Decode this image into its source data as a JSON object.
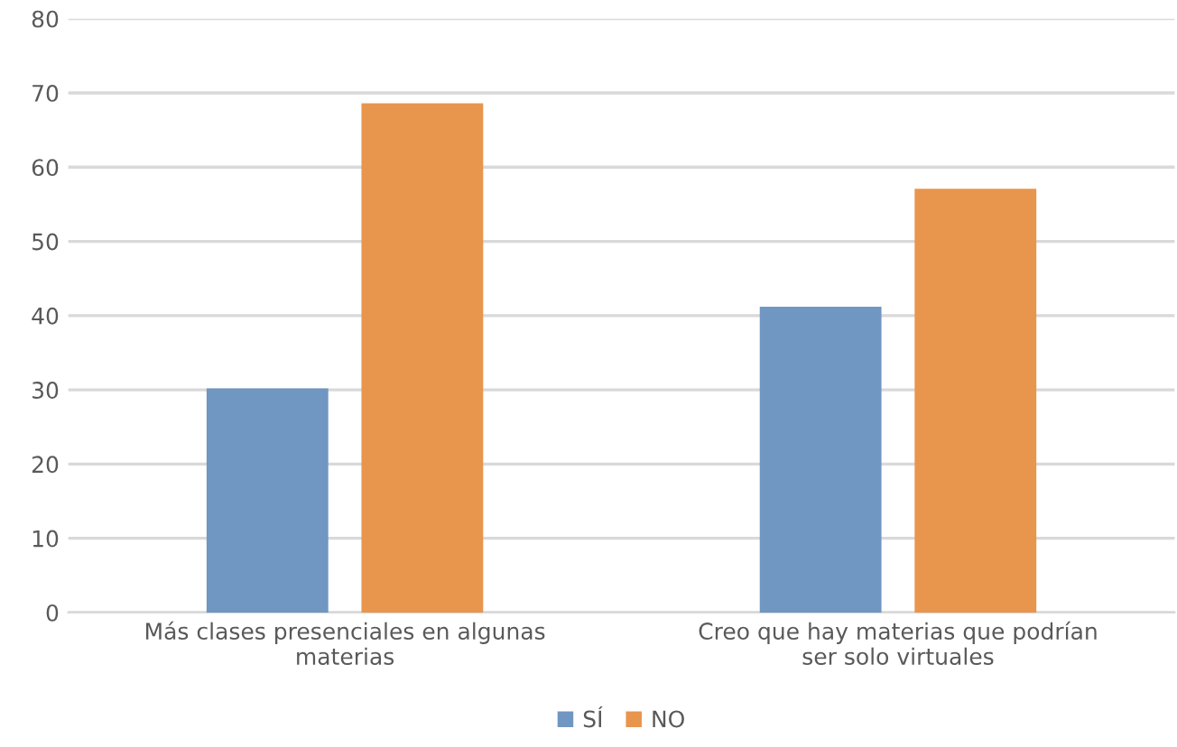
{
  "chart_data": {
    "type": "bar",
    "categories": [
      "Más clases presenciales en algunas materias",
      "Creo que hay materias que podrían ser solo virtuales"
    ],
    "series": [
      {
        "name": "SÍ",
        "color": "#7096c2",
        "values": [
          30.2,
          41.2
        ]
      },
      {
        "name": "NO",
        "color": "#e8954d",
        "values": [
          68.6,
          57.1
        ]
      }
    ],
    "ylim": [
      0,
      80
    ],
    "yticks": [
      0,
      10,
      20,
      30,
      40,
      50,
      60,
      70,
      80
    ],
    "grid": "y",
    "legend": "bottom"
  }
}
